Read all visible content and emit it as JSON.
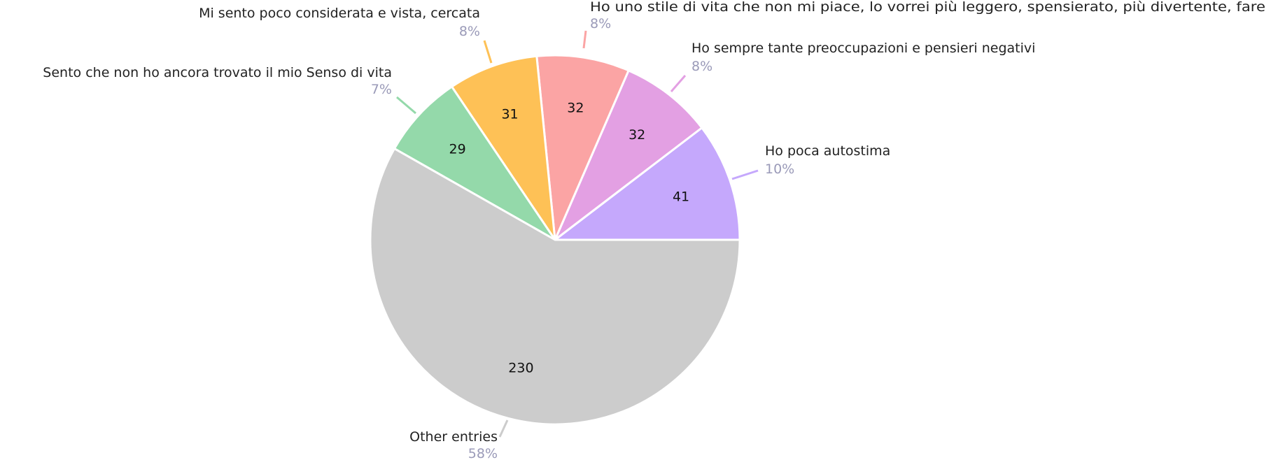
{
  "chart_data": {
    "type": "pie",
    "categories": [
      "Ho poca autostima",
      "Ho sempre tante preoccupazioni e pensieri negativi",
      "Ho uno stile di vita che non mi piace, lo vorrei più leggero, spensierato, più divertente, fare",
      "Mi sento poco considerata e vista, cercata",
      "Sento che non ho ancora trovato il mio Senso di vita",
      "Other entries"
    ],
    "values": [
      41,
      32,
      32,
      31,
      29,
      230
    ],
    "percent_labels": [
      "10%",
      "8%",
      "8%",
      "8%",
      "7%",
      "58%"
    ],
    "colors": [
      "#c5a8fc",
      "#e3a0e3",
      "#fba4a4",
      "#fec156",
      "#94d9aa",
      "#cccccc"
    ]
  }
}
